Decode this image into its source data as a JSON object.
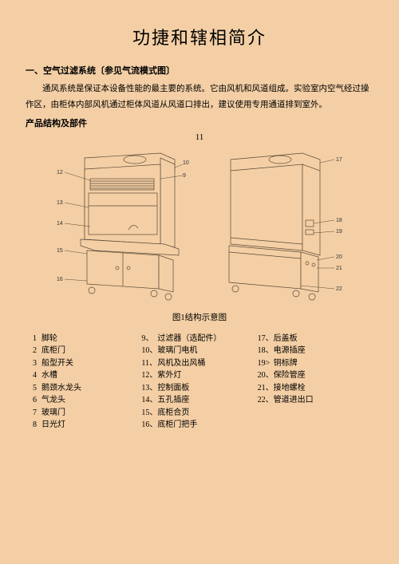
{
  "title": "功捷和辖相简介",
  "section1_head": "一、空气过滤系统〔参见气流模式图〕",
  "section1_body": "通风系统是保证本设备性能的最主要的系统。它由风机和风道组成。实验室内空气经过操作区，由柜体内部风机通过柜体风道从风道口排出，建议使用专用通道排到室外。",
  "section2_head": "产品结构及部件",
  "fig_top_num": "11",
  "caption": "图1结构示意图",
  "parts_col1": [
    {
      "n": "1",
      "t": "脚轮"
    },
    {
      "n": "2",
      "t": "底柜门"
    },
    {
      "n": "3",
      "t": "船型开关"
    },
    {
      "n": "4",
      "t": "水槽"
    },
    {
      "n": "5",
      "t": "鹅颈水龙头"
    },
    {
      "n": "6",
      "t": "气龙头"
    },
    {
      "n": "7",
      "t": "玻璃门"
    },
    {
      "n": "8",
      "t": "日光灯"
    }
  ],
  "parts_col2": [
    {
      "n": "9、",
      "t": "过滤器（选配件）"
    },
    {
      "n": "10、",
      "t": "玻璃门电机"
    },
    {
      "n": "11、",
      "t": "风机及出风桶"
    },
    {
      "n": "12、",
      "t": "紫外灯"
    },
    {
      "n": "13、",
      "t": "控制面板"
    },
    {
      "n": "14、",
      "t": "五孔插座"
    },
    {
      "n": "15、",
      "t": "底柜合页"
    },
    {
      "n": "16、",
      "t": "底柜门把手"
    }
  ],
  "parts_col3": [
    {
      "n": "17、",
      "t": "后盖板"
    },
    {
      "n": "18、",
      "t": "电源插座"
    },
    {
      "n": "19>",
      "t": "铜标牌"
    },
    {
      "n": "20、",
      "t": "保险管座"
    },
    {
      "n": "21、",
      "t": "接地螺栓"
    },
    {
      "n": "22、",
      "t": "管道进出口"
    }
  ],
  "callouts_left": [
    "12",
    "13",
    "14",
    "15",
    "16",
    "10",
    "9",
    "11",
    "17"
  ],
  "callouts_right": [
    "17",
    "18",
    "19",
    "20",
    "21",
    "22"
  ]
}
